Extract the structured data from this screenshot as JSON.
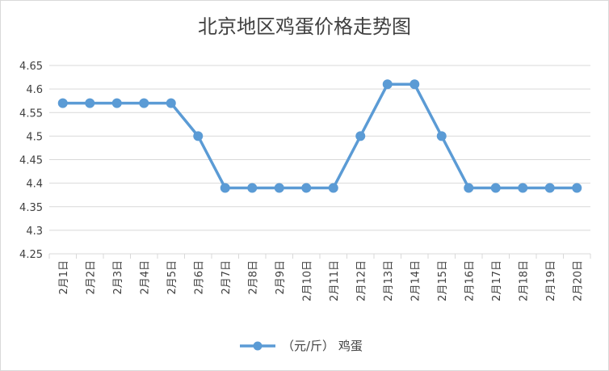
{
  "chart_data": {
    "type": "line",
    "title": "北京地区鸡蛋价格走势图",
    "xlabel": "",
    "ylabel": "",
    "categories": [
      "2月1日",
      "2月2日",
      "2月3日",
      "2月4日",
      "2月5日",
      "2月6日",
      "2月7日",
      "2月8日",
      "2月9日",
      "2月10日",
      "2月11日",
      "2月12日",
      "2月13日",
      "2月14日",
      "2月15日",
      "2月16日",
      "2月17日",
      "2月18日",
      "2月19日",
      "2月20日"
    ],
    "series": [
      {
        "name": "（元/斤） 鸡蛋",
        "values": [
          4.57,
          4.57,
          4.57,
          4.57,
          4.57,
          4.5,
          4.39,
          4.39,
          4.39,
          4.39,
          4.39,
          4.5,
          4.61,
          4.61,
          4.5,
          4.39,
          4.39,
          4.39,
          4.39,
          4.39
        ]
      }
    ],
    "ylim": [
      4.25,
      4.65
    ],
    "yticks": [
      4.25,
      4.3,
      4.35,
      4.4,
      4.45,
      4.5,
      4.55,
      4.6,
      4.65
    ],
    "ytick_labels": [
      "4.25",
      "4.3",
      "4.35",
      "4.4",
      "4.45",
      "4.5",
      "4.55",
      "4.6",
      "4.65"
    ],
    "grid": true,
    "legend": "bottom",
    "line_color": "#5b9bd5",
    "grid_color": "#d9d9d9"
  }
}
